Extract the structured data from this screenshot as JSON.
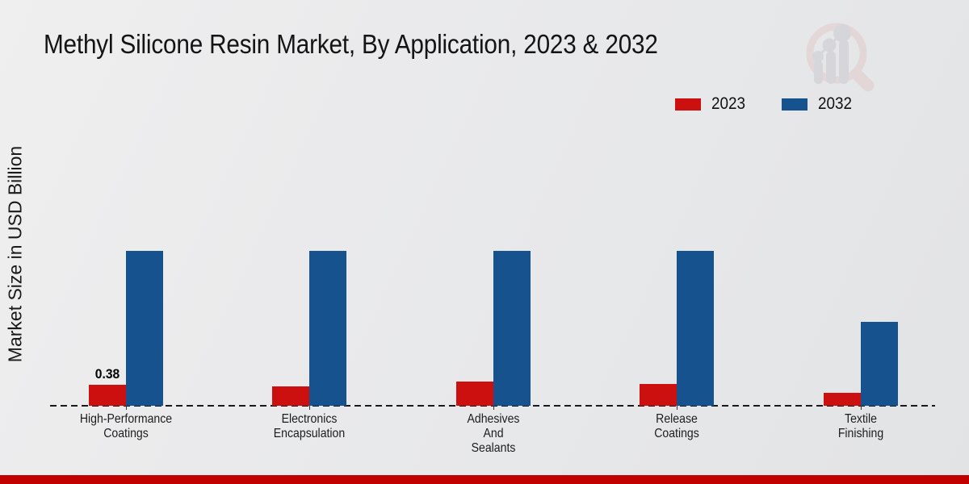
{
  "page": {
    "footer_color": "#c10000"
  },
  "logo": {
    "name": "magnifier-bar-chart-logo",
    "ring_color": "#e3c8c8",
    "bars_color": "#c8c8cd"
  },
  "chart_data": {
    "type": "bar",
    "title": "Methyl Silicone Resin Market, By Application, 2023 & 2032",
    "ylabel": "Market Size in USD Billion",
    "xlabel": "",
    "categories": [
      "High-Performance\nCoatings",
      "Electronics\nEncapsulation",
      "Adhesives\nAnd\nSealants",
      "Release\nCoatings",
      "Textile\nFinishing"
    ],
    "series": [
      {
        "name": "2023",
        "color": "#cc1010",
        "values": [
          0.38,
          0.35,
          0.44,
          0.39,
          0.23
        ],
        "labels": [
          "0.38",
          "",
          "",
          "",
          ""
        ]
      },
      {
        "name": "2032",
        "color": "#16538e",
        "values": [
          2.81,
          2.81,
          2.81,
          2.81,
          1.52
        ],
        "labels": [
          "",
          "",
          "",
          "",
          ""
        ]
      }
    ],
    "ylim": [
      0,
      3.2
    ],
    "grid": false,
    "legend_position": "top-right",
    "baseline_style": "dashed"
  }
}
